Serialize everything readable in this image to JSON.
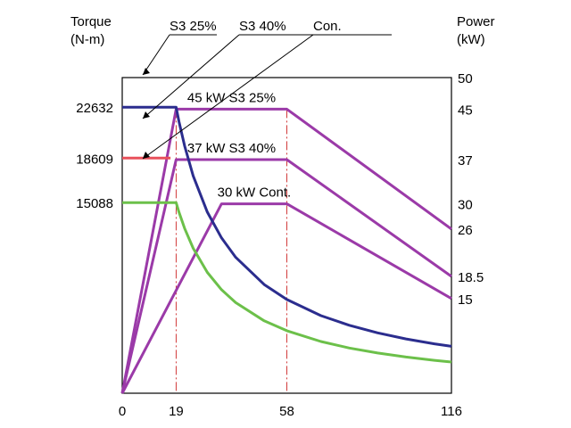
{
  "chart_data": {
    "type": "line",
    "x_axis": {
      "ticks": [
        0,
        19,
        58,
        116
      ],
      "range": [
        0,
        116
      ]
    },
    "y_left": {
      "label_line1": "Torque",
      "label_line2": "(N-m)",
      "ticks": [
        22632,
        18609,
        15088
      ],
      "range": [
        0,
        24977
      ]
    },
    "y_right": {
      "label_line1": "Power",
      "label_line2": "(kW)",
      "ticks": [
        "50",
        "45",
        "37",
        "30",
        "26",
        "18.5",
        "15"
      ],
      "range": [
        0,
        50
      ]
    },
    "ref_lines_x": [
      19,
      58
    ],
    "legend": [
      {
        "label": "S3 25%",
        "target": "torque_s3_25"
      },
      {
        "label": "S3 40%",
        "target": "torque_s3_40"
      },
      {
        "label": "Con.",
        "target": "torque_cont"
      }
    ],
    "series": [
      {
        "id": "torque_s3_25",
        "kind": "torque",
        "name": "Torque S3 25%",
        "color": "#2b2d8e",
        "x": [
          0,
          18,
          19,
          20,
          22,
          25,
          30,
          35,
          40,
          50,
          58,
          70,
          80,
          90,
          100,
          110,
          116
        ],
        "y": [
          22632,
          22632,
          22632,
          21500,
          19550,
          17200,
          14330,
          12290,
          10750,
          8600,
          7415,
          6140,
          5375,
          4780,
          4300,
          3910,
          3710
        ]
      },
      {
        "id": "torque_s3_40",
        "kind": "torque",
        "name": "Torque S3 40%",
        "color": "#e8505b",
        "x": [
          0,
          17
        ],
        "y": [
          18609,
          18609
        ]
      },
      {
        "id": "torque_cont",
        "kind": "torque",
        "name": "Torque Cont.",
        "color": "#6cc04a",
        "x": [
          0,
          19,
          20,
          22,
          25,
          30,
          35,
          40,
          50,
          58,
          70,
          80,
          90,
          100,
          110,
          116
        ],
        "y": [
          15088,
          15088,
          14330,
          13030,
          11470,
          9560,
          8190,
          7170,
          5730,
          4945,
          4095,
          3580,
          3185,
          2865,
          2605,
          2470
        ]
      },
      {
        "id": "power_s3_25",
        "kind": "power",
        "name": "45 kW S3 25%",
        "color": "#9b3aa8",
        "x": [
          0,
          19,
          58,
          116
        ],
        "y": [
          0,
          45,
          45,
          26
        ]
      },
      {
        "id": "power_s3_40",
        "kind": "power",
        "name": "37 kW S3 40%",
        "color": "#9b3aa8",
        "x": [
          0,
          19,
          58,
          116
        ],
        "y": [
          0,
          37,
          37,
          18.5
        ]
      },
      {
        "id": "power_cont",
        "kind": "power",
        "name": "30 kW Cont.",
        "color": "#9b3aa8",
        "x": [
          0,
          35,
          58,
          116
        ],
        "y": [
          0,
          30,
          30,
          15
        ]
      }
    ],
    "annotations": [
      {
        "text": "45 kW S3 25%",
        "series": "power_s3_25"
      },
      {
        "text": "37 kW S3 40%",
        "series": "power_s3_40"
      },
      {
        "text": "30 kW Cont.",
        "series": "power_cont"
      }
    ]
  }
}
